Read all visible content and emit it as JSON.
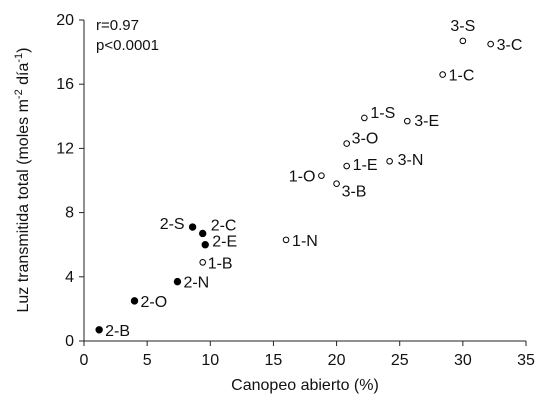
{
  "chart_data": {
    "type": "scatter",
    "xlabel": "Canopeo abierto (%)",
    "ylabel": {
      "pre": "Luz transmitida total (moles m",
      "sup1": "-2",
      "mid": " día",
      "sup2": "-1",
      "post": ")"
    },
    "xlim": [
      0,
      35
    ],
    "ylim": [
      0,
      20
    ],
    "xticks": [
      0,
      5,
      10,
      15,
      20,
      25,
      30,
      35
    ],
    "yticks": [
      0,
      4,
      8,
      12,
      16,
      20
    ],
    "grid": false,
    "annotations": [
      "r=0.97",
      "p<0.0001"
    ],
    "series": [
      {
        "marker": "filled",
        "points": [
          {
            "label": "2-B",
            "x": 1.2,
            "y": 0.7
          },
          {
            "label": "2-O",
            "x": 4.0,
            "y": 2.5
          },
          {
            "label": "2-N",
            "x": 7.4,
            "y": 3.7
          },
          {
            "label": "2-S",
            "x": 8.6,
            "y": 7.1
          },
          {
            "label": "2-C",
            "x": 9.4,
            "y": 6.7
          },
          {
            "label": "2-E",
            "x": 9.6,
            "y": 6.0
          }
        ]
      },
      {
        "marker": "open",
        "points": [
          {
            "label": "1-B",
            "x": 9.4,
            "y": 4.9
          },
          {
            "label": "1-N",
            "x": 16.0,
            "y": 6.3
          },
          {
            "label": "1-O",
            "x": 18.8,
            "y": 10.3
          },
          {
            "label": "3-B",
            "x": 20.0,
            "y": 9.8
          },
          {
            "label": "1-E",
            "x": 20.8,
            "y": 10.9
          },
          {
            "label": "3-O",
            "x": 20.8,
            "y": 12.3
          },
          {
            "label": "1-S",
            "x": 22.2,
            "y": 13.9
          },
          {
            "label": "3-N",
            "x": 24.2,
            "y": 11.2
          },
          {
            "label": "3-E",
            "x": 25.6,
            "y": 13.7
          },
          {
            "label": "1-C",
            "x": 28.4,
            "y": 16.6
          },
          {
            "label": "3-S",
            "x": 30.0,
            "y": 18.7
          },
          {
            "label": "3-C",
            "x": 32.2,
            "y": 18.5
          }
        ]
      }
    ]
  }
}
